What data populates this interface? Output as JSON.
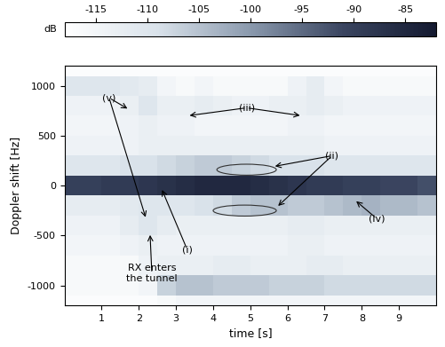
{
  "chart_data": {
    "type": "heatmap",
    "xlabel": "time [s]",
    "ylabel": "Doppler shift [Hz]",
    "colorbar_label": "dB",
    "xlim": [
      0,
      10
    ],
    "ylim": [
      -1200,
      1200
    ],
    "xticks": [
      1,
      2,
      3,
      4,
      5,
      6,
      7,
      8,
      9
    ],
    "yticks": [
      -1000,
      -500,
      0,
      500,
      1000
    ],
    "clim": [
      -118,
      -82
    ],
    "colorbar_ticks": [
      -115,
      -110,
      -105,
      -100,
      -95,
      -90,
      -85
    ],
    "x_edges": [
      0,
      0.5,
      1,
      1.5,
      2,
      2.5,
      3,
      3.5,
      4,
      4.5,
      5,
      5.5,
      6,
      6.5,
      7,
      7.5,
      8,
      8.5,
      9,
      9.5,
      10
    ],
    "y_edges": [
      -1300,
      -1100,
      -900,
      -700,
      -500,
      -300,
      -100,
      100,
      300,
      500,
      700,
      900,
      1100,
      1300
    ],
    "cells": [
      [
        -117,
        -117,
        -117,
        -117,
        -117,
        -116,
        -115,
        -115,
        -115,
        -115,
        -115,
        -115,
        -115,
        -115,
        -115,
        -115,
        -115,
        -115,
        -115,
        -115
      ],
      [
        -116,
        -116,
        -116,
        -116,
        -115,
        -107,
        -105,
        -105,
        -106,
        -106,
        -106,
        -107,
        -107,
        -107,
        -108,
        -108,
        -108,
        -108,
        -108,
        -108
      ],
      [
        -116,
        -116,
        -116,
        -116,
        -114,
        -113,
        -113,
        -113,
        -112,
        -112,
        -113,
        -113,
        -113,
        -112,
        -112,
        -113,
        -113,
        -113,
        -113,
        -113
      ],
      [
        -115,
        -115,
        -115,
        -114,
        -113,
        -114,
        -114,
        -114,
        -114,
        -114,
        -114,
        -114,
        -113,
        -113,
        -114,
        -114,
        -114,
        -114,
        -114,
        -114
      ],
      [
        -114,
        -114,
        -114,
        -112,
        -110,
        -112,
        -113,
        -113,
        -113,
        -113,
        -113,
        -113,
        -112,
        -112,
        -113,
        -113,
        -113,
        -113,
        -113,
        -113
      ],
      [
        -112,
        -112,
        -112,
        -111,
        -110,
        -110,
        -110,
        -109,
        -108,
        -106,
        -105,
        -105,
        -106,
        -106,
        -105,
        -104,
        -103,
        -104,
        -104,
        -105
      ],
      [
        -90,
        -90,
        -89,
        -89,
        -88,
        -87,
        -86,
        -85,
        -85,
        -85,
        -86,
        -87,
        -88,
        -89,
        -89,
        -90,
        -90,
        -91,
        -91,
        -92
      ],
      [
        -110,
        -110,
        -110,
        -109,
        -109,
        -108,
        -107,
        -106,
        -106,
        -107,
        -108,
        -109,
        -109,
        -109,
        -110,
        -110,
        -110,
        -110,
        -110,
        -110
      ],
      [
        -114,
        -114,
        -114,
        -114,
        -113,
        -113,
        -113,
        -113,
        -113,
        -113,
        -113,
        -113,
        -113,
        -113,
        -114,
        -114,
        -114,
        -114,
        -114,
        -114
      ],
      [
        -115,
        -115,
        -115,
        -114,
        -113,
        -114,
        -114,
        -115,
        -115,
        -115,
        -115,
        -115,
        -114,
        -114,
        -115,
        -115,
        -115,
        -115,
        -115,
        -115
      ],
      [
        -114,
        -114,
        -114,
        -113,
        -110,
        -113,
        -113,
        -112,
        -113,
        -114,
        -114,
        -113,
        -113,
        -112,
        -113,
        -114,
        -114,
        -114,
        -114,
        -114
      ],
      [
        -110,
        -110,
        -110,
        -111,
        -112,
        -115,
        -116,
        -115,
        -116,
        -116,
        -116,
        -116,
        -114,
        -112,
        -115,
        -116,
        -116,
        -116,
        -116,
        -116
      ],
      [
        -117,
        -117,
        -117,
        -117,
        -117,
        -117,
        -117,
        -117,
        -117,
        -117,
        -117,
        -117,
        -117,
        -117,
        -117,
        -117,
        -117,
        -117,
        -117,
        -117
      ]
    ],
    "annotations": [
      {
        "text": "(i)"
      },
      {
        "text": "(ii)"
      },
      {
        "text": "(iii)"
      },
      {
        "text": "(iv)"
      },
      {
        "text": "(v)"
      },
      {
        "text": "RX enters\nthe tunnel"
      }
    ]
  }
}
